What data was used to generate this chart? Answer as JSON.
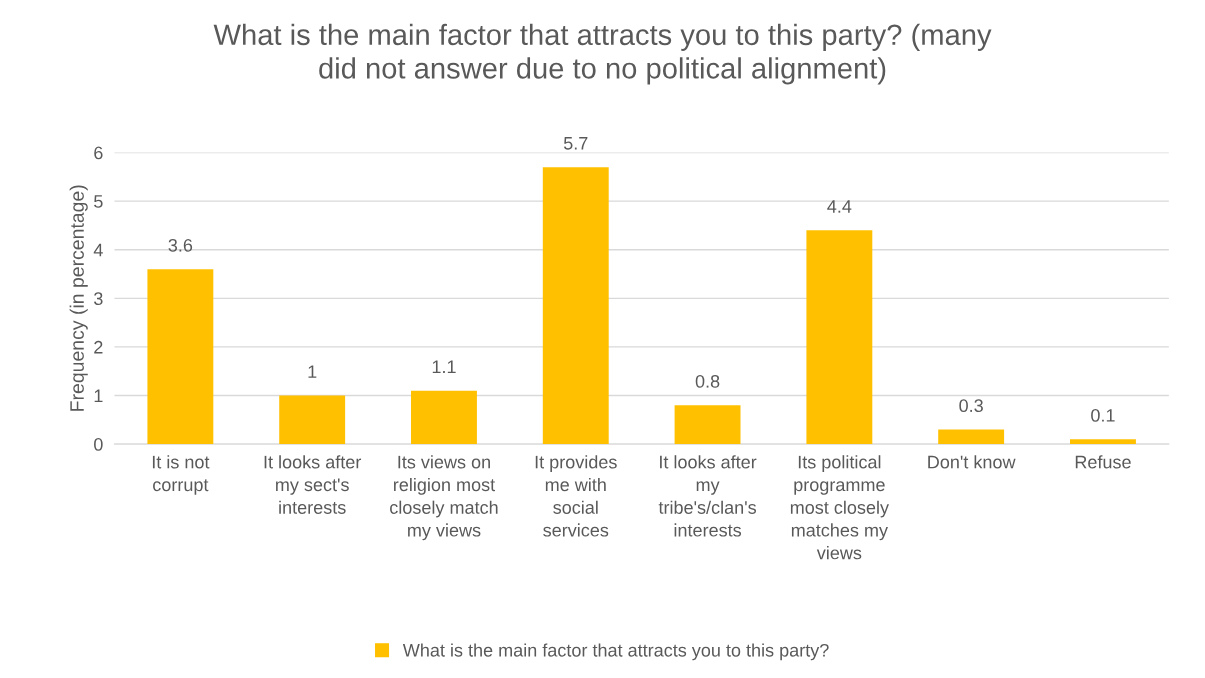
{
  "chart_data": {
    "type": "bar",
    "title": "What is the main factor that attracts you to this party? (many did not answer due to no political alignment)",
    "ylabel": "Frequency (in percentage)",
    "categories": [
      "It is not\ncorrupt",
      "It looks after\nmy sect's\ninterests",
      "Its views on\nreligion most\nclosely match\nmy views",
      "It provides\nme with\nsocial\nservices",
      "It looks after\nmy\ntribe's/clan's\ninterests",
      "Its political\nprogramme\nmost closely\nmatches my\nviews",
      "Don't know",
      "Refuse"
    ],
    "series": [
      {
        "name": "What is the main factor that attracts you to this party?",
        "color": "#ffc000",
        "values": [
          3.6,
          1,
          1.1,
          5.7,
          0.8,
          4.4,
          0.3,
          0.1
        ]
      }
    ],
    "ylim": [
      0,
      6
    ],
    "yticks": [
      0,
      1,
      2,
      3,
      4,
      5,
      6
    ],
    "grid": "y",
    "legend": "bottom",
    "data_labels": true
  }
}
